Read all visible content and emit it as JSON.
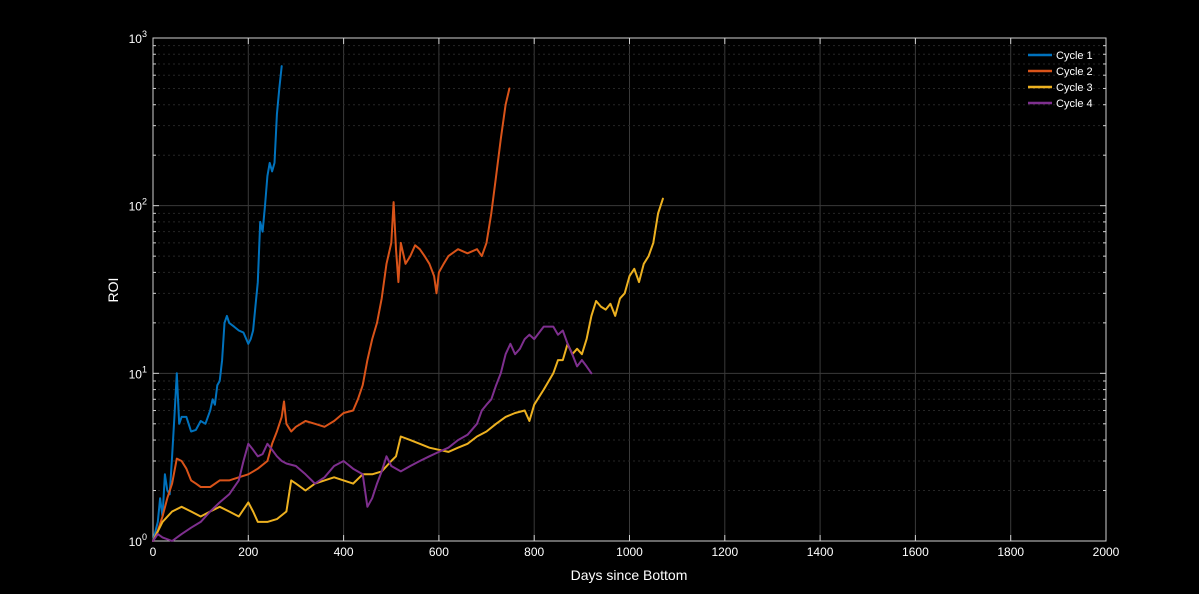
{
  "chart_data": {
    "type": "line",
    "title": "",
    "xlabel": "Days since Bottom",
    "ylabel": "ROI",
    "xlim": [
      0,
      2000
    ],
    "ylim": [
      1,
      1000
    ],
    "yscale": "log",
    "grid": true,
    "legend_position": "top-right",
    "x_ticks": [
      "0",
      "200",
      "400",
      "600",
      "800",
      "1000",
      "1200",
      "1400",
      "1600",
      "1800",
      "2000"
    ],
    "y_ticks": [
      {
        "base": "10",
        "exp": "0"
      },
      {
        "base": "10",
        "exp": "1"
      },
      {
        "base": "10",
        "exp": "2"
      },
      {
        "base": "10",
        "exp": "3"
      }
    ],
    "series": [
      {
        "name": "Cycle 1",
        "color": "#0072BD",
        "points": [
          [
            0,
            1.0
          ],
          [
            10,
            1.3
          ],
          [
            15,
            1.8
          ],
          [
            20,
            1.4
          ],
          [
            25,
            2.5
          ],
          [
            30,
            2.0
          ],
          [
            35,
            1.9
          ],
          [
            40,
            3.2
          ],
          [
            45,
            5.5
          ],
          [
            50,
            10.0
          ],
          [
            55,
            5.0
          ],
          [
            60,
            5.5
          ],
          [
            70,
            5.5
          ],
          [
            80,
            4.5
          ],
          [
            90,
            4.6
          ],
          [
            100,
            5.2
          ],
          [
            110,
            5.0
          ],
          [
            120,
            6.0
          ],
          [
            125,
            7.0
          ],
          [
            130,
            6.5
          ],
          [
            135,
            8.5
          ],
          [
            140,
            9.0
          ],
          [
            145,
            12.0
          ],
          [
            150,
            20.0
          ],
          [
            155,
            22.0
          ],
          [
            160,
            20.0
          ],
          [
            170,
            19.0
          ],
          [
            180,
            18.0
          ],
          [
            190,
            17.5
          ],
          [
            200,
            15.0
          ],
          [
            205,
            16.0
          ],
          [
            210,
            18.0
          ],
          [
            215,
            25.0
          ],
          [
            220,
            35.0
          ],
          [
            225,
            80.0
          ],
          [
            230,
            70.0
          ],
          [
            235,
            100.0
          ],
          [
            240,
            150.0
          ],
          [
            245,
            180.0
          ],
          [
            250,
            160.0
          ],
          [
            255,
            180.0
          ],
          [
            260,
            350.0
          ],
          [
            265,
            500.0
          ],
          [
            270,
            680.0
          ]
        ]
      },
      {
        "name": "Cycle 2",
        "color": "#D95319",
        "points": [
          [
            0,
            1.0
          ],
          [
            10,
            1.15
          ],
          [
            20,
            1.4
          ],
          [
            30,
            1.8
          ],
          [
            40,
            2.2
          ],
          [
            50,
            3.1
          ],
          [
            60,
            3.0
          ],
          [
            70,
            2.7
          ],
          [
            80,
            2.3
          ],
          [
            90,
            2.2
          ],
          [
            100,
            2.1
          ],
          [
            120,
            2.1
          ],
          [
            140,
            2.3
          ],
          [
            160,
            2.3
          ],
          [
            180,
            2.4
          ],
          [
            200,
            2.5
          ],
          [
            220,
            2.7
          ],
          [
            240,
            3.0
          ],
          [
            250,
            3.8
          ],
          [
            260,
            4.5
          ],
          [
            270,
            5.5
          ],
          [
            275,
            6.8
          ],
          [
            280,
            5.0
          ],
          [
            290,
            4.5
          ],
          [
            300,
            4.8
          ],
          [
            320,
            5.2
          ],
          [
            340,
            5.0
          ],
          [
            360,
            4.8
          ],
          [
            380,
            5.2
          ],
          [
            400,
            5.8
          ],
          [
            420,
            6.0
          ],
          [
            430,
            7.0
          ],
          [
            440,
            8.5
          ],
          [
            450,
            12.0
          ],
          [
            460,
            16.0
          ],
          [
            470,
            20.0
          ],
          [
            480,
            28.0
          ],
          [
            490,
            45.0
          ],
          [
            500,
            60.0
          ],
          [
            505,
            105.0
          ],
          [
            510,
            55.0
          ],
          [
            515,
            35.0
          ],
          [
            520,
            60.0
          ],
          [
            530,
            45.0
          ],
          [
            540,
            50.0
          ],
          [
            550,
            58.0
          ],
          [
            560,
            55.0
          ],
          [
            570,
            50.0
          ],
          [
            580,
            45.0
          ],
          [
            590,
            38.0
          ],
          [
            595,
            30.0
          ],
          [
            600,
            40.0
          ],
          [
            610,
            45.0
          ],
          [
            620,
            50.0
          ],
          [
            640,
            55.0
          ],
          [
            660,
            52.0
          ],
          [
            680,
            55.0
          ],
          [
            690,
            50.0
          ],
          [
            700,
            60.0
          ],
          [
            710,
            90.0
          ],
          [
            720,
            150.0
          ],
          [
            730,
            250.0
          ],
          [
            740,
            400.0
          ],
          [
            748,
            500.0
          ]
        ]
      },
      {
        "name": "Cycle 3",
        "color": "#EDB120",
        "points": [
          [
            0,
            1.0
          ],
          [
            20,
            1.3
          ],
          [
            40,
            1.5
          ],
          [
            60,
            1.6
          ],
          [
            80,
            1.5
          ],
          [
            100,
            1.4
          ],
          [
            120,
            1.5
          ],
          [
            140,
            1.6
          ],
          [
            160,
            1.5
          ],
          [
            180,
            1.4
          ],
          [
            200,
            1.7
          ],
          [
            210,
            1.5
          ],
          [
            220,
            1.3
          ],
          [
            240,
            1.3
          ],
          [
            260,
            1.35
          ],
          [
            280,
            1.5
          ],
          [
            290,
            2.3
          ],
          [
            300,
            2.2
          ],
          [
            320,
            2.0
          ],
          [
            340,
            2.2
          ],
          [
            360,
            2.3
          ],
          [
            380,
            2.4
          ],
          [
            400,
            2.3
          ],
          [
            420,
            2.2
          ],
          [
            440,
            2.5
          ],
          [
            460,
            2.5
          ],
          [
            480,
            2.6
          ],
          [
            500,
            3.0
          ],
          [
            510,
            3.2
          ],
          [
            520,
            4.2
          ],
          [
            540,
            4.0
          ],
          [
            560,
            3.8
          ],
          [
            580,
            3.6
          ],
          [
            600,
            3.5
          ],
          [
            620,
            3.4
          ],
          [
            640,
            3.6
          ],
          [
            660,
            3.8
          ],
          [
            680,
            4.2
          ],
          [
            700,
            4.5
          ],
          [
            720,
            5.0
          ],
          [
            740,
            5.5
          ],
          [
            760,
            5.8
          ],
          [
            780,
            6.0
          ],
          [
            790,
            5.2
          ],
          [
            800,
            6.5
          ],
          [
            820,
            8.0
          ],
          [
            840,
            10.0
          ],
          [
            850,
            12.0
          ],
          [
            860,
            12.0
          ],
          [
            870,
            15.0
          ],
          [
            880,
            13.0
          ],
          [
            890,
            14.0
          ],
          [
            900,
            13.0
          ],
          [
            910,
            16.0
          ],
          [
            920,
            22.0
          ],
          [
            930,
            27.0
          ],
          [
            940,
            25.0
          ],
          [
            950,
            24.0
          ],
          [
            960,
            26.0
          ],
          [
            970,
            22.0
          ],
          [
            980,
            28.0
          ],
          [
            990,
            30.0
          ],
          [
            1000,
            38.0
          ],
          [
            1010,
            42.0
          ],
          [
            1020,
            35.0
          ],
          [
            1030,
            45.0
          ],
          [
            1040,
            50.0
          ],
          [
            1050,
            60.0
          ],
          [
            1060,
            90.0
          ],
          [
            1070,
            110.0
          ]
        ]
      },
      {
        "name": "Cycle 4",
        "color": "#7E2F8E",
        "points": [
          [
            0,
            1.0
          ],
          [
            10,
            1.1
          ],
          [
            20,
            1.05
          ],
          [
            40,
            1.0
          ],
          [
            60,
            1.1
          ],
          [
            80,
            1.2
          ],
          [
            100,
            1.3
          ],
          [
            120,
            1.5
          ],
          [
            140,
            1.7
          ],
          [
            160,
            1.9
          ],
          [
            180,
            2.3
          ],
          [
            190,
            3.0
          ],
          [
            200,
            3.8
          ],
          [
            210,
            3.5
          ],
          [
            220,
            3.2
          ],
          [
            230,
            3.3
          ],
          [
            240,
            3.8
          ],
          [
            250,
            3.5
          ],
          [
            260,
            3.2
          ],
          [
            270,
            3.0
          ],
          [
            280,
            2.9
          ],
          [
            300,
            2.8
          ],
          [
            320,
            2.5
          ],
          [
            340,
            2.2
          ],
          [
            360,
            2.4
          ],
          [
            380,
            2.8
          ],
          [
            400,
            3.0
          ],
          [
            420,
            2.7
          ],
          [
            440,
            2.5
          ],
          [
            450,
            1.6
          ],
          [
            460,
            1.8
          ],
          [
            470,
            2.2
          ],
          [
            480,
            2.6
          ],
          [
            490,
            3.2
          ],
          [
            500,
            2.8
          ],
          [
            520,
            2.6
          ],
          [
            540,
            2.8
          ],
          [
            560,
            3.0
          ],
          [
            580,
            3.2
          ],
          [
            600,
            3.4
          ],
          [
            620,
            3.6
          ],
          [
            640,
            4.0
          ],
          [
            660,
            4.3
          ],
          [
            680,
            5.0
          ],
          [
            690,
            6.0
          ],
          [
            700,
            6.5
          ],
          [
            710,
            7.0
          ],
          [
            720,
            8.5
          ],
          [
            730,
            10.0
          ],
          [
            740,
            13.0
          ],
          [
            750,
            15.0
          ],
          [
            760,
            13.0
          ],
          [
            770,
            14.0
          ],
          [
            780,
            16.0
          ],
          [
            790,
            17.0
          ],
          [
            800,
            16.0
          ],
          [
            820,
            19.0
          ],
          [
            840,
            19.0
          ],
          [
            850,
            17.0
          ],
          [
            860,
            18.0
          ],
          [
            870,
            15.0
          ],
          [
            880,
            13.0
          ],
          [
            890,
            11.0
          ],
          [
            900,
            12.0
          ],
          [
            910,
            11.0
          ],
          [
            920,
            10.0
          ]
        ]
      }
    ]
  }
}
